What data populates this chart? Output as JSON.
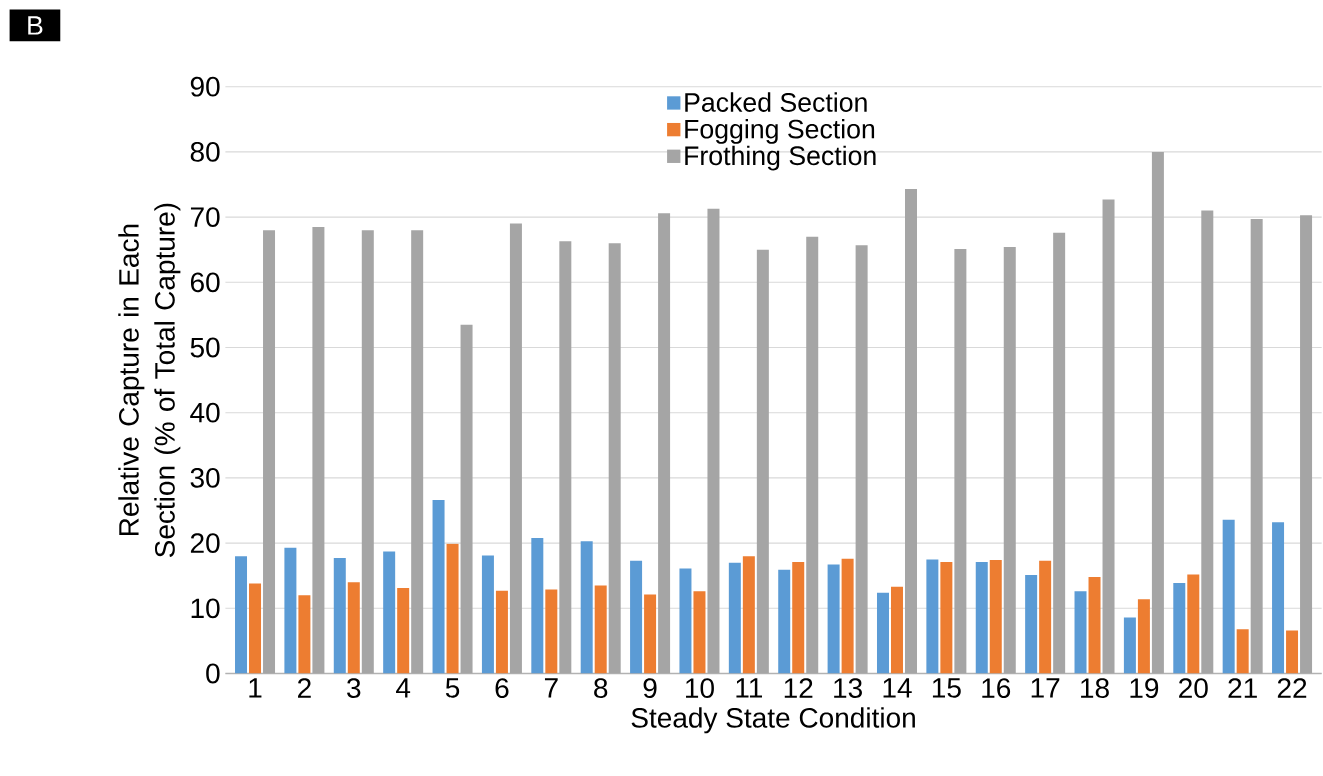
{
  "chart_data": {
    "type": "bar",
    "xlabel": "Steady State Condition",
    "ylabel": "Relative Capture in Each Section (% of Total Capture)",
    "annotations": [
      "B"
    ],
    "categories": [
      "1",
      "2",
      "3",
      "4",
      "5",
      "6",
      "7",
      "8",
      "9",
      "10",
      "11",
      "12",
      "13",
      "14",
      "15",
      "16",
      "17",
      "18",
      "19",
      "20",
      "21",
      "22"
    ],
    "series": [
      {
        "name": "Packed Section",
        "color": "#5b9bd5",
        "values": [
          18,
          19.3,
          17.7,
          18.7,
          26.6,
          18.1,
          20.8,
          20.3,
          17.3,
          16.1,
          17,
          15.9,
          16.7,
          12.4,
          17.5,
          17.1,
          15.1,
          12.6,
          8.6,
          13.9,
          23.6,
          23.2
        ]
      },
      {
        "name": "Fogging Section",
        "color": "#ed7d31",
        "values": [
          13.8,
          12,
          14,
          13.1,
          19.9,
          12.7,
          12.9,
          13.5,
          12.1,
          12.6,
          18,
          17.1,
          17.6,
          13.3,
          17.1,
          17.4,
          17.3,
          14.8,
          11.4,
          15.2,
          6.8,
          6.6
        ]
      },
      {
        "name": "Frothing Section",
        "color": "#a5a5a5",
        "values": [
          68,
          68.5,
          68,
          68,
          53.5,
          69,
          66.3,
          66,
          70.6,
          71.3,
          65,
          67,
          65.7,
          74.3,
          65.1,
          65.4,
          67.6,
          72.7,
          80,
          71,
          69.7,
          70.3
        ]
      }
    ],
    "ylim": [
      0,
      90
    ],
    "yticks": [
      0,
      10,
      20,
      30,
      40,
      50,
      60,
      70,
      80,
      90
    ],
    "grid": "y",
    "legend": "top"
  }
}
